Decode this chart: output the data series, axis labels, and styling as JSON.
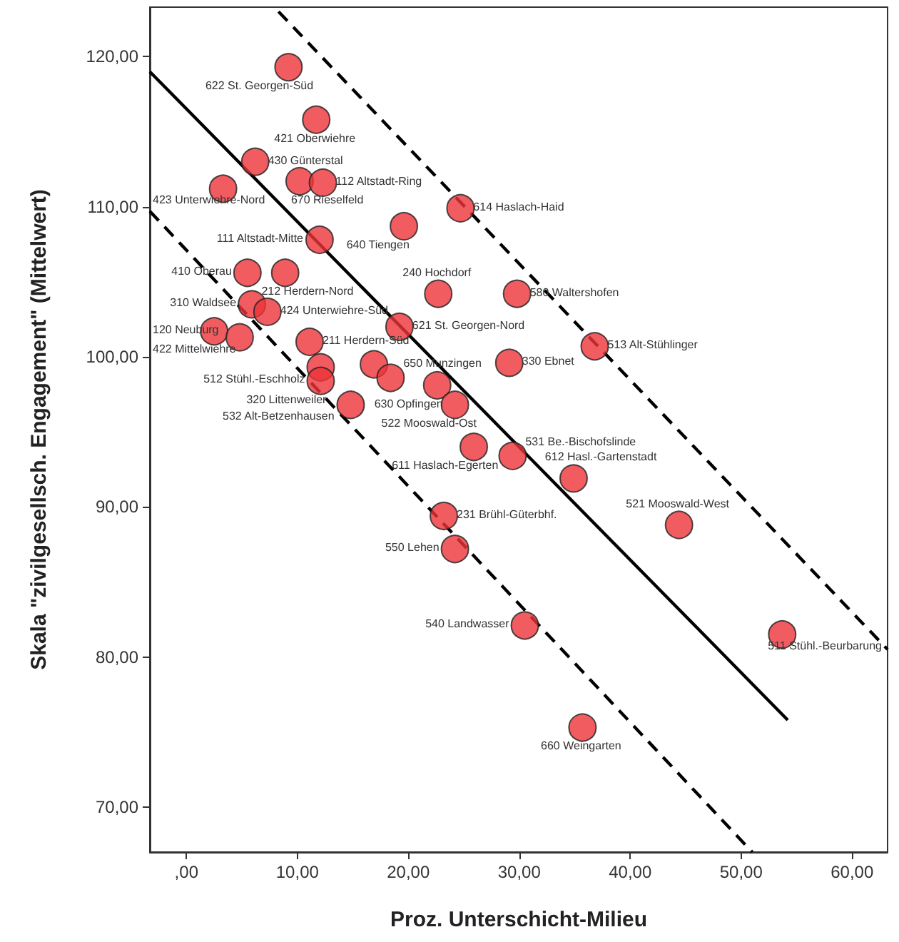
{
  "chart_data": {
    "type": "scatter",
    "xlabel": "Proz. Unterschicht-Milieu",
    "ylabel": "Skala \"zivilgesellsch. Engagement\" (Mittelwert)",
    "xlim": [
      -3.3,
      63.2
    ],
    "ylim": [
      67,
      123.3
    ],
    "xticks": [
      {
        "value": 0,
        "label": ",00"
      },
      {
        "value": 10,
        "label": "10,00"
      },
      {
        "value": 20,
        "label": "20,00"
      },
      {
        "value": 30,
        "label": "30,00"
      },
      {
        "value": 40,
        "label": "40,00"
      },
      {
        "value": 50,
        "label": "50,00"
      },
      {
        "value": 60,
        "label": "60,00"
      }
    ],
    "yticks": [
      {
        "value": 70,
        "label": "70,00"
      },
      {
        "value": 80,
        "label": "80,00"
      },
      {
        "value": 90,
        "label": "90,00"
      },
      {
        "value": 100,
        "label": "100,00"
      },
      {
        "value": 110,
        "label": "110,00"
      },
      {
        "value": 120,
        "label": "120,00"
      }
    ],
    "marker": "circle",
    "series": [
      {
        "color": "#ee3338",
        "x": [
          9.2,
          11.7,
          6.2,
          3.3,
          10.2,
          12.3,
          12.0,
          19.6,
          24.7,
          5.5,
          8.9,
          5.9,
          7.3,
          2.5,
          4.8,
          11.1,
          12.1,
          12.1,
          14.8,
          16.9,
          18.4,
          19.2,
          22.7,
          29.8,
          22.6,
          24.2,
          29.1,
          36.8,
          25.9,
          29.4,
          34.9,
          44.4,
          23.2,
          24.2,
          30.5,
          53.7,
          35.7
        ],
        "values": [
          119.3,
          115.8,
          113.0,
          111.2,
          111.7,
          111.6,
          107.8,
          108.7,
          109.9,
          105.6,
          105.6,
          103.5,
          103.0,
          101.7,
          101.3,
          101.0,
          99.3,
          98.4,
          96.8,
          99.5,
          98.6,
          102.0,
          104.2,
          104.2,
          98.1,
          96.8,
          99.6,
          100.7,
          94.0,
          93.4,
          91.9,
          88.8,
          89.4,
          87.2,
          82.1,
          81.5,
          75.3
        ]
      },
      {
        "type": "line",
        "color": "#000000",
        "marker": "none",
        "line_style": "solid",
        "x": [
          -3.3,
          54.2
        ],
        "values": [
          119.0,
          75.8
        ]
      },
      {
        "type": "line",
        "color": "#000000",
        "marker": "none",
        "line_style": "dashed",
        "x": [
          8.3,
          63.2
        ],
        "values": [
          123.0,
          80.5
        ]
      },
      {
        "type": "line",
        "color": "#000000",
        "marker": "none",
        "line_style": "dashed",
        "x": [
          -3.3,
          51.0
        ],
        "values": [
          109.7,
          67.0
        ]
      }
    ],
    "annotations": [
      {
        "text": "622 St. Georgen-Süd",
        "x": 9.2,
        "y": 119.3
      },
      {
        "text": "421 Oberwiehre",
        "x": 11.7,
        "y": 115.8
      },
      {
        "text": "430 Günterstal",
        "x": 6.2,
        "y": 113.0
      },
      {
        "text": "423 Unterwiehre-Nord",
        "x": 3.3,
        "y": 111.2
      },
      {
        "text": "670 Rieselfeld",
        "x": 10.2,
        "y": 111.7
      },
      {
        "text": "112 Altstadt-Ring",
        "x": 12.3,
        "y": 111.6
      },
      {
        "text": "111 Altstadt-Mitte",
        "x": 12.0,
        "y": 107.8
      },
      {
        "text": "640 Tiengen",
        "x": 19.6,
        "y": 108.7
      },
      {
        "text": "614 Haslach-Haid",
        "x": 24.7,
        "y": 109.9
      },
      {
        "text": "410 Oberau",
        "x": 5.5,
        "y": 105.6
      },
      {
        "text": "212 Herdern-Nord",
        "x": 8.9,
        "y": 105.6
      },
      {
        "text": "310 Waldsee",
        "x": 5.9,
        "y": 103.5
      },
      {
        "text": "424 Unterwiehre-Süd",
        "x": 7.3,
        "y": 103.0
      },
      {
        "text": "120 Neuburg",
        "x": 2.5,
        "y": 101.7
      },
      {
        "text": "422 Mittelwiehre",
        "x": 4.8,
        "y": 101.3
      },
      {
        "text": "211 Herdern-Süd",
        "x": 11.1,
        "y": 101.0
      },
      {
        "text": "512 Stühl.-Eschholz",
        "x": 12.1,
        "y": 99.3
      },
      {
        "text": "320 Littenweiler",
        "x": 12.1,
        "y": 98.4
      },
      {
        "text": "532 Alt-Betzenhausen",
        "x": 14.8,
        "y": 96.8
      },
      {
        "text": "650 Munzingen",
        "x": 18.4,
        "y": 98.6
      },
      {
        "text": "621 St. Georgen-Nord",
        "x": 19.2,
        "y": 102.0
      },
      {
        "text": "240 Hochdorf",
        "x": 22.7,
        "y": 104.2
      },
      {
        "text": "580 Waltershofen",
        "x": 29.8,
        "y": 104.2
      },
      {
        "text": "630 Opfingen",
        "x": 22.6,
        "y": 98.1
      },
      {
        "text": "522 Mooswald-Ost",
        "x": 24.2,
        "y": 96.8
      },
      {
        "text": "330 Ebnet",
        "x": 29.1,
        "y": 99.6
      },
      {
        "text": "513 Alt-Stühlinger",
        "x": 36.8,
        "y": 100.7
      },
      {
        "text": "611 Haslach-Egerten",
        "x": 25.9,
        "y": 94.0
      },
      {
        "text": "531 Be.-Bischofslinde",
        "x": 29.4,
        "y": 93.4
      },
      {
        "text": "612 Hasl.-Gartenstadt",
        "x": 34.9,
        "y": 91.9
      },
      {
        "text": "521 Mooswald-West",
        "x": 44.4,
        "y": 88.8
      },
      {
        "text": "231 Brühl-Güterbhf.",
        "x": 23.2,
        "y": 89.4
      },
      {
        "text": "550 Lehen",
        "x": 24.2,
        "y": 87.2
      },
      {
        "text": "540 Landwasser",
        "x": 30.5,
        "y": 82.1
      },
      {
        "text": "511 Stühl.-Beurbarung",
        "x": 53.7,
        "y": 81.5
      },
      {
        "text": "660 Weingarten",
        "x": 35.7,
        "y": 75.3
      }
    ]
  }
}
